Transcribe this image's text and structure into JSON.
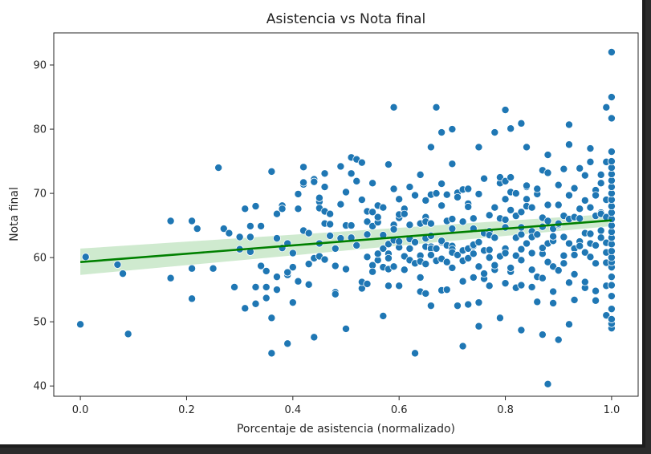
{
  "chart_data": {
    "type": "scatter",
    "title": "Asistencia vs Nota final",
    "xlabel": "Porcentaje de asistencia (normalizado)",
    "ylabel": "Nota final",
    "xlim": [
      -0.05,
      1.05
    ],
    "ylim": [
      38.4,
      95
    ],
    "xticks": [
      "0.0",
      "0.2",
      "0.4",
      "0.6",
      "0.8",
      "1.0"
    ],
    "yticks": [
      "40",
      "50",
      "60",
      "70",
      "80",
      "90"
    ],
    "grid": false,
    "legend": "none",
    "colors": {
      "points": "#1f77b4",
      "point_edge": "#ffffff",
      "fit_line": "#008000",
      "confidence_band": "#bfe3bf"
    },
    "regression": {
      "x": [
        0.0,
        1.0
      ],
      "y": [
        59.3,
        65.8
      ],
      "ci_low": [
        57.3,
        64.9
      ],
      "ci_high": [
        61.4,
        66.8
      ]
    },
    "points": [
      [
        0.0,
        49.6
      ],
      [
        0.01,
        60.1
      ],
      [
        0.07,
        58.9
      ],
      [
        0.08,
        57.5
      ],
      [
        0.09,
        48.1
      ],
      [
        0.17,
        65.7
      ],
      [
        0.17,
        56.8
      ],
      [
        0.21,
        65.7
      ],
      [
        0.21,
        58.3
      ],
      [
        0.21,
        53.6
      ],
      [
        0.22,
        64.5
      ],
      [
        0.25,
        58.3
      ],
      [
        0.26,
        74.0
      ],
      [
        0.27,
        64.5
      ],
      [
        0.28,
        63.8
      ],
      [
        0.29,
        55.4
      ],
      [
        0.3,
        61.3
      ],
      [
        0.3,
        63.2
      ],
      [
        0.31,
        52.1
      ],
      [
        0.31,
        67.6
      ],
      [
        0.32,
        63.2
      ],
      [
        0.32,
        64.9
      ],
      [
        0.32,
        60.9
      ],
      [
        0.33,
        52.8
      ],
      [
        0.33,
        55.4
      ],
      [
        0.33,
        68.0
      ],
      [
        0.34,
        58.7
      ],
      [
        0.34,
        64.9
      ],
      [
        0.35,
        57.9
      ],
      [
        0.35,
        55.4
      ],
      [
        0.35,
        53.7
      ],
      [
        0.36,
        50.6
      ],
      [
        0.36,
        73.4
      ],
      [
        0.36,
        45.1
      ],
      [
        0.37,
        66.8
      ],
      [
        0.37,
        55.0
      ],
      [
        0.37,
        57.0
      ],
      [
        0.37,
        63.0
      ],
      [
        0.38,
        68.1
      ],
      [
        0.38,
        67.6
      ],
      [
        0.38,
        61.5
      ],
      [
        0.39,
        62.2
      ],
      [
        0.39,
        46.6
      ],
      [
        0.39,
        57.3
      ],
      [
        0.39,
        57.7
      ],
      [
        0.4,
        58.5
      ],
      [
        0.4,
        60.7
      ],
      [
        0.4,
        53.0
      ],
      [
        0.41,
        69.9
      ],
      [
        0.41,
        56.3
      ],
      [
        0.41,
        67.6
      ],
      [
        0.42,
        71.4
      ],
      [
        0.42,
        64.2
      ],
      [
        0.42,
        71.7
      ],
      [
        0.42,
        74.1
      ],
      [
        0.43,
        55.8
      ],
      [
        0.43,
        59.0
      ],
      [
        0.43,
        63.8
      ],
      [
        0.44,
        72.2
      ],
      [
        0.44,
        59.9
      ],
      [
        0.44,
        47.6
      ],
      [
        0.44,
        71.8
      ],
      [
        0.45,
        68.7
      ],
      [
        0.45,
        62.2
      ],
      [
        0.45,
        60.2
      ],
      [
        0.45,
        67.7
      ],
      [
        0.45,
        69.3
      ],
      [
        0.46,
        73.1
      ],
      [
        0.46,
        59.7
      ],
      [
        0.46,
        71.0
      ],
      [
        0.46,
        67.2
      ],
      [
        0.46,
        65.3
      ],
      [
        0.47,
        63.4
      ],
      [
        0.47,
        66.8
      ],
      [
        0.47,
        65.2
      ],
      [
        0.48,
        58.7
      ],
      [
        0.48,
        61.4
      ],
      [
        0.48,
        54.6
      ],
      [
        0.48,
        54.3
      ],
      [
        0.49,
        68.3
      ],
      [
        0.49,
        63.0
      ],
      [
        0.49,
        74.2
      ],
      [
        0.5,
        58.3
      ],
      [
        0.5,
        48.9
      ],
      [
        0.5,
        65.0
      ],
      [
        0.5,
        70.2
      ],
      [
        0.5,
        58.2
      ],
      [
        0.51,
        75.6
      ],
      [
        0.51,
        73.1
      ],
      [
        0.51,
        65.0
      ],
      [
        0.51,
        63.1
      ],
      [
        0.52,
        75.3
      ],
      [
        0.52,
        71.9
      ],
      [
        0.52,
        61.9
      ],
      [
        0.53,
        74.8
      ],
      [
        0.53,
        55.2
      ],
      [
        0.53,
        69.0
      ],
      [
        0.53,
        56.2
      ],
      [
        0.54,
        63.6
      ],
      [
        0.54,
        55.9
      ],
      [
        0.54,
        65.6
      ],
      [
        0.54,
        67.2
      ],
      [
        0.54,
        60.1
      ],
      [
        0.55,
        64.9
      ],
      [
        0.55,
        67.1
      ],
      [
        0.55,
        71.6
      ],
      [
        0.55,
        58.8
      ],
      [
        0.55,
        57.8
      ],
      [
        0.56,
        65.5
      ],
      [
        0.56,
        68.1
      ],
      [
        0.56,
        59.6
      ],
      [
        0.56,
        60.6
      ],
      [
        0.56,
        66.3
      ],
      [
        0.57,
        63.5
      ],
      [
        0.57,
        67.8
      ],
      [
        0.57,
        58.5
      ],
      [
        0.57,
        61.4
      ],
      [
        0.57,
        50.9
      ],
      [
        0.58,
        55.6
      ],
      [
        0.58,
        62.1
      ],
      [
        0.58,
        58.2
      ],
      [
        0.58,
        60.6
      ],
      [
        0.58,
        59.9
      ],
      [
        0.58,
        74.5
      ],
      [
        0.59,
        65.1
      ],
      [
        0.59,
        70.7
      ],
      [
        0.59,
        58.6
      ],
      [
        0.59,
        62.7
      ],
      [
        0.59,
        64.4
      ],
      [
        0.6,
        61.6
      ],
      [
        0.6,
        69.1
      ],
      [
        0.6,
        66.2
      ],
      [
        0.6,
        55.6
      ],
      [
        0.6,
        62.5
      ],
      [
        0.6,
        66.7
      ],
      [
        0.61,
        67.6
      ],
      [
        0.61,
        66.8
      ],
      [
        0.61,
        58.1
      ],
      [
        0.61,
        60.2
      ],
      [
        0.62,
        71.0
      ],
      [
        0.62,
        59.6
      ],
      [
        0.62,
        65.1
      ],
      [
        0.62,
        61.4
      ],
      [
        0.62,
        62.9
      ],
      [
        0.63,
        59.1
      ],
      [
        0.63,
        45.1
      ],
      [
        0.63,
        62.3
      ],
      [
        0.63,
        69.7
      ],
      [
        0.63,
        62.4
      ],
      [
        0.64,
        56.9
      ],
      [
        0.64,
        65.3
      ],
      [
        0.64,
        60.3
      ],
      [
        0.64,
        54.7
      ],
      [
        0.64,
        59.4
      ],
      [
        0.64,
        72.9
      ],
      [
        0.65,
        68.9
      ],
      [
        0.65,
        61.7
      ],
      [
        0.65,
        63.0
      ],
      [
        0.65,
        66.3
      ],
      [
        0.65,
        59.0
      ],
      [
        0.65,
        54.4
      ],
      [
        0.65,
        65.6
      ],
      [
        0.66,
        52.5
      ],
      [
        0.66,
        69.8
      ],
      [
        0.66,
        61.7
      ],
      [
        0.66,
        63.4
      ],
      [
        0.66,
        61.4
      ],
      [
        0.66,
        65.3
      ],
      [
        0.66,
        60.4
      ],
      [
        0.67,
        83.4
      ],
      [
        0.67,
        70.0
      ],
      [
        0.67,
        61.4
      ],
      [
        0.67,
        59.5
      ],
      [
        0.68,
        71.5
      ],
      [
        0.68,
        62.4
      ],
      [
        0.68,
        62.6
      ],
      [
        0.68,
        59.8
      ],
      [
        0.68,
        68.1
      ],
      [
        0.68,
        54.9
      ],
      [
        0.69,
        55.0
      ],
      [
        0.69,
        65.7
      ],
      [
        0.69,
        59.3
      ],
      [
        0.69,
        61.9
      ],
      [
        0.69,
        69.8
      ],
      [
        0.7,
        58.4
      ],
      [
        0.7,
        64.5
      ],
      [
        0.7,
        74.6
      ],
      [
        0.7,
        61.8
      ],
      [
        0.7,
        61.3
      ],
      [
        0.7,
        66.0
      ],
      [
        0.7,
        60.8
      ],
      [
        0.71,
        52.5
      ],
      [
        0.71,
        70.1
      ],
      [
        0.71,
        60.4
      ],
      [
        0.71,
        69.4
      ],
      [
        0.72,
        56.3
      ],
      [
        0.72,
        46.2
      ],
      [
        0.72,
        59.5
      ],
      [
        0.72,
        61.1
      ],
      [
        0.72,
        65.6
      ],
      [
        0.72,
        70.6
      ],
      [
        0.73,
        68.4
      ],
      [
        0.73,
        70.7
      ],
      [
        0.73,
        67.9
      ],
      [
        0.73,
        52.7
      ],
      [
        0.73,
        59.9
      ],
      [
        0.73,
        61.4
      ],
      [
        0.74,
        61.8
      ],
      [
        0.74,
        56.9
      ],
      [
        0.74,
        60.6
      ],
      [
        0.74,
        62.0
      ],
      [
        0.74,
        66.1
      ],
      [
        0.74,
        64.5
      ],
      [
        0.75,
        58.6
      ],
      [
        0.75,
        53.0
      ],
      [
        0.75,
        62.4
      ],
      [
        0.75,
        69.9
      ],
      [
        0.75,
        77.2
      ],
      [
        0.76,
        61.1
      ],
      [
        0.76,
        63.8
      ],
      [
        0.76,
        56.7
      ],
      [
        0.76,
        57.5
      ],
      [
        0.76,
        72.3
      ],
      [
        0.77,
        60.0
      ],
      [
        0.77,
        64.1
      ],
      [
        0.77,
        63.5
      ],
      [
        0.77,
        55.6
      ],
      [
        0.77,
        61.2
      ],
      [
        0.77,
        66.6
      ],
      [
        0.78,
        67.8
      ],
      [
        0.78,
        79.5
      ],
      [
        0.78,
        63.1
      ],
      [
        0.78,
        58.1
      ],
      [
        0.78,
        58.8
      ],
      [
        0.79,
        71.6
      ],
      [
        0.79,
        72.5
      ],
      [
        0.79,
        60.2
      ],
      [
        0.79,
        50.6
      ],
      [
        0.79,
        66.1
      ],
      [
        0.8,
        61.4
      ],
      [
        0.8,
        65.9
      ],
      [
        0.8,
        69.1
      ],
      [
        0.8,
        60.7
      ],
      [
        0.8,
        71.9
      ],
      [
        0.8,
        64.7
      ],
      [
        0.8,
        56.0
      ],
      [
        0.81,
        70.2
      ],
      [
        0.81,
        67.4
      ],
      [
        0.81,
        57.8
      ],
      [
        0.81,
        80.1
      ],
      [
        0.81,
        58.4
      ],
      [
        0.81,
        72.5
      ],
      [
        0.82,
        60.3
      ],
      [
        0.82,
        55.3
      ],
      [
        0.82,
        63.1
      ],
      [
        0.82,
        66.5
      ],
      [
        0.82,
        70.0
      ],
      [
        0.83,
        63.6
      ],
      [
        0.83,
        64.7
      ],
      [
        0.83,
        67.1
      ],
      [
        0.83,
        61.3
      ],
      [
        0.83,
        59.6
      ],
      [
        0.83,
        55.7
      ],
      [
        0.84,
        71.0
      ],
      [
        0.84,
        69.1
      ],
      [
        0.84,
        62.2
      ],
      [
        0.84,
        68.0
      ],
      [
        0.84,
        71.2
      ],
      [
        0.85,
        64.1
      ],
      [
        0.85,
        60.7
      ],
      [
        0.85,
        58.1
      ],
      [
        0.85,
        63.2
      ],
      [
        0.85,
        67.8
      ],
      [
        0.85,
        55.4
      ],
      [
        0.86,
        69.9
      ],
      [
        0.86,
        70.7
      ],
      [
        0.86,
        57.0
      ],
      [
        0.86,
        63.6
      ],
      [
        0.86,
        53.1
      ],
      [
        0.87,
        64.8
      ],
      [
        0.87,
        60.6
      ],
      [
        0.87,
        66.2
      ],
      [
        0.87,
        73.6
      ],
      [
        0.87,
        61.5
      ],
      [
        0.87,
        56.8
      ],
      [
        0.88,
        68.2
      ],
      [
        0.88,
        65.7
      ],
      [
        0.88,
        59.3
      ],
      [
        0.88,
        73.2
      ],
      [
        0.88,
        62.2
      ],
      [
        0.88,
        76.0
      ],
      [
        0.89,
        58.6
      ],
      [
        0.89,
        62.6
      ],
      [
        0.89,
        64.5
      ],
      [
        0.89,
        52.9
      ],
      [
        0.89,
        63.3
      ],
      [
        0.89,
        54.7
      ],
      [
        0.9,
        65.1
      ],
      [
        0.9,
        68.2
      ],
      [
        0.9,
        58.0
      ],
      [
        0.9,
        71.3
      ],
      [
        0.9,
        65.3
      ],
      [
        0.9,
        47.2
      ],
      [
        0.91,
        60.3
      ],
      [
        0.91,
        66.5
      ],
      [
        0.91,
        63.2
      ],
      [
        0.91,
        59.1
      ],
      [
        0.91,
        73.8
      ],
      [
        0.92,
        56.1
      ],
      [
        0.92,
        66.0
      ],
      [
        0.92,
        62.2
      ],
      [
        0.92,
        49.6
      ],
      [
        0.92,
        69.7
      ],
      [
        0.93,
        61.4
      ],
      [
        0.93,
        66.3
      ],
      [
        0.93,
        60.4
      ],
      [
        0.93,
        57.4
      ],
      [
        0.93,
        53.4
      ],
      [
        0.93,
        70.8
      ],
      [
        0.94,
        66.1
      ],
      [
        0.94,
        73.9
      ],
      [
        0.94,
        62.5
      ],
      [
        0.94,
        67.6
      ],
      [
        0.94,
        61.8
      ],
      [
        0.95,
        68.9
      ],
      [
        0.95,
        60.8
      ],
      [
        0.95,
        63.8
      ],
      [
        0.95,
        72.8
      ],
      [
        0.95,
        55.3
      ],
      [
        0.95,
        56.2
      ],
      [
        0.96,
        74.9
      ],
      [
        0.96,
        63.7
      ],
      [
        0.96,
        62.2
      ],
      [
        0.96,
        67.8
      ],
      [
        0.96,
        60.1
      ],
      [
        0.97,
        70.5
      ],
      [
        0.97,
        61.9
      ],
      [
        0.97,
        66.5
      ],
      [
        0.97,
        59.1
      ],
      [
        0.97,
        54.8
      ],
      [
        0.97,
        69.7
      ],
      [
        0.98,
        64.2
      ],
      [
        0.98,
        71.6
      ],
      [
        0.98,
        67.0
      ],
      [
        0.98,
        72.9
      ],
      [
        0.98,
        66.8
      ],
      [
        0.98,
        63.1
      ],
      [
        0.99,
        62.3
      ],
      [
        0.99,
        59.2
      ],
      [
        0.99,
        60.8
      ],
      [
        0.99,
        55.6
      ],
      [
        0.99,
        69.0
      ],
      [
        0.99,
        74.9
      ],
      [
        0.99,
        66.3
      ],
      [
        0.8,
        83.0
      ],
      [
        0.83,
        80.9
      ],
      [
        0.92,
        80.7
      ],
      [
        0.99,
        83.4
      ],
      [
        1.0,
        92.0
      ],
      [
        1.0,
        85.0
      ],
      [
        1.0,
        81.7
      ],
      [
        0.88,
        40.3
      ],
      [
        0.59,
        83.4
      ],
      [
        0.7,
        80.0
      ],
      [
        0.68,
        79.5
      ],
      [
        0.66,
        77.2
      ],
      [
        0.84,
        77.2
      ],
      [
        0.96,
        77.0
      ],
      [
        0.92,
        77.6
      ],
      [
        0.83,
        48.7
      ],
      [
        0.87,
        48.0
      ],
      [
        0.75,
        49.3
      ],
      [
        0.99,
        51.0
      ],
      [
        0.97,
        53.3
      ],
      [
        1.0,
        49.0
      ],
      [
        1.0,
        49.7
      ],
      [
        1.0,
        50.4
      ],
      [
        1.0,
        52.0
      ],
      [
        1.0,
        54.0
      ],
      [
        1.0,
        55.7
      ],
      [
        1.0,
        57.0
      ],
      [
        1.0,
        58.5
      ],
      [
        1.0,
        59.3
      ],
      [
        1.0,
        60.0
      ],
      [
        1.0,
        61.0
      ],
      [
        1.0,
        62.1
      ],
      [
        1.0,
        63.1
      ],
      [
        1.0,
        64.0
      ],
      [
        1.0,
        65.0
      ],
      [
        1.0,
        66.0
      ],
      [
        1.0,
        67.0
      ],
      [
        1.0,
        68.0
      ],
      [
        1.0,
        69.0
      ],
      [
        1.0,
        70.0
      ],
      [
        1.0,
        71.0
      ],
      [
        1.0,
        72.0
      ],
      [
        1.0,
        73.0
      ],
      [
        1.0,
        74.0
      ],
      [
        1.0,
        75.0
      ],
      [
        1.0,
        76.5
      ]
    ]
  }
}
